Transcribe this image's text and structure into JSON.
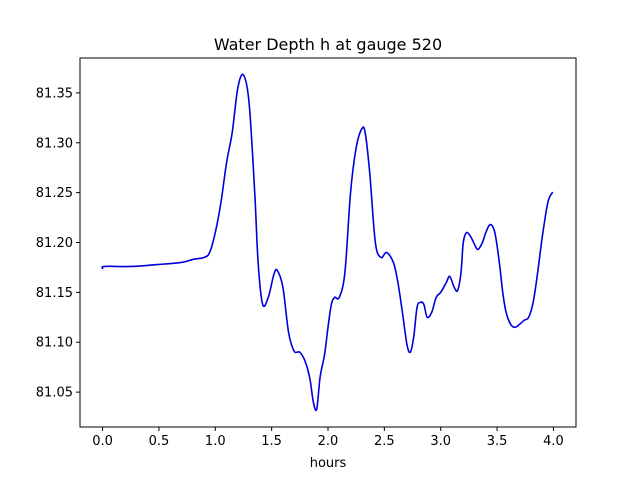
{
  "chart_data": {
    "type": "line",
    "title": "Water Depth h at gauge 520",
    "xlabel": "hours",
    "ylabel": "",
    "xlim": [
      -0.2,
      4.2
    ],
    "ylim": [
      81.015,
      81.385
    ],
    "xticks": [
      0.0,
      0.5,
      1.0,
      1.5,
      2.0,
      2.5,
      3.0,
      3.5,
      4.0
    ],
    "xtick_labels": [
      "0.0",
      "0.5",
      "1.0",
      "1.5",
      "2.0",
      "2.5",
      "3.0",
      "3.5",
      "4.0"
    ],
    "yticks": [
      81.05,
      81.1,
      81.15,
      81.2,
      81.25,
      81.3,
      81.35
    ],
    "ytick_labels": [
      "81.05",
      "81.10",
      "81.15",
      "81.20",
      "81.25",
      "81.30",
      "81.35"
    ],
    "grid": false,
    "legend": "none",
    "series": [
      {
        "color": "#0000dd",
        "x": [
          0.0,
          0.02,
          0.25,
          0.5,
          0.7,
          0.8,
          0.9,
          0.95,
          1.0,
          1.05,
          1.1,
          1.15,
          1.2,
          1.25,
          1.3,
          1.35,
          1.38,
          1.42,
          1.47,
          1.52,
          1.55,
          1.6,
          1.65,
          1.7,
          1.75,
          1.8,
          1.84,
          1.87,
          1.9,
          1.93,
          1.97,
          2.0,
          2.03,
          2.06,
          2.1,
          2.15,
          2.2,
          2.25,
          2.3,
          2.33,
          2.37,
          2.42,
          2.47,
          2.52,
          2.58,
          2.62,
          2.66,
          2.7,
          2.73,
          2.76,
          2.79,
          2.82,
          2.85,
          2.88,
          2.92,
          2.96,
          3.0,
          3.05,
          3.08,
          3.12,
          3.15,
          3.18,
          3.2,
          3.23,
          3.27,
          3.3,
          3.33,
          3.37,
          3.4,
          3.44,
          3.48,
          3.52,
          3.55,
          3.58,
          3.62,
          3.66,
          3.7,
          3.74,
          3.78,
          3.82,
          3.86,
          3.9,
          3.95,
          3.99
        ],
        "y": [
          81.174,
          81.176,
          81.176,
          81.178,
          81.18,
          81.183,
          81.185,
          81.19,
          81.21,
          81.24,
          81.28,
          81.31,
          81.355,
          81.368,
          81.34,
          81.25,
          81.18,
          81.138,
          81.145,
          81.168,
          81.172,
          81.155,
          81.11,
          81.091,
          81.09,
          81.08,
          81.063,
          81.04,
          81.033,
          81.065,
          81.088,
          81.115,
          81.138,
          81.145,
          81.145,
          81.17,
          81.25,
          81.295,
          81.314,
          81.31,
          81.27,
          81.2,
          81.185,
          81.19,
          81.18,
          81.16,
          81.13,
          81.098,
          81.09,
          81.105,
          81.135,
          81.14,
          81.138,
          81.125,
          81.13,
          81.145,
          81.15,
          81.16,
          81.166,
          81.155,
          81.152,
          81.17,
          81.2,
          81.21,
          81.205,
          81.198,
          81.193,
          81.2,
          81.21,
          81.218,
          81.21,
          81.18,
          81.15,
          81.13,
          81.118,
          81.115,
          81.118,
          81.122,
          81.125,
          81.14,
          81.17,
          81.205,
          81.24,
          81.25
        ]
      }
    ]
  }
}
